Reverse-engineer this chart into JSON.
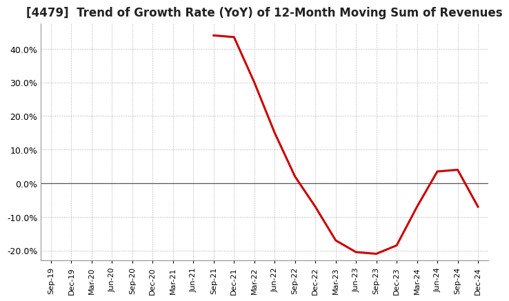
{
  "title": "[4479]  Trend of Growth Rate (YoY) of 12-Month Moving Sum of Revenues",
  "title_fontsize": 12,
  "line_color": "#cc0000",
  "line_width": 2.2,
  "background_color": "#ffffff",
  "plot_bg_color": "#ffffff",
  "grid_color": "#aaaaaa",
  "ylim": [
    -0.23,
    0.475
  ],
  "yticks": [
    -0.2,
    -0.1,
    0.0,
    0.1,
    0.2,
    0.3,
    0.4
  ],
  "dates": [
    "Sep-19",
    "Dec-19",
    "Mar-20",
    "Jun-20",
    "Sep-20",
    "Dec-20",
    "Mar-21",
    "Jun-21",
    "Sep-21",
    "Dec-21",
    "Mar-22",
    "Jun-22",
    "Sep-22",
    "Dec-22",
    "Mar-23",
    "Jun-23",
    "Sep-23",
    "Dec-23",
    "Mar-24",
    "Jun-24",
    "Sep-24",
    "Dec-24"
  ],
  "values": [
    null,
    null,
    null,
    null,
    null,
    null,
    null,
    null,
    0.44,
    0.435,
    0.3,
    0.15,
    0.02,
    -0.07,
    -0.17,
    -0.205,
    -0.21,
    -0.185,
    -0.07,
    0.035,
    0.04,
    -0.07
  ]
}
